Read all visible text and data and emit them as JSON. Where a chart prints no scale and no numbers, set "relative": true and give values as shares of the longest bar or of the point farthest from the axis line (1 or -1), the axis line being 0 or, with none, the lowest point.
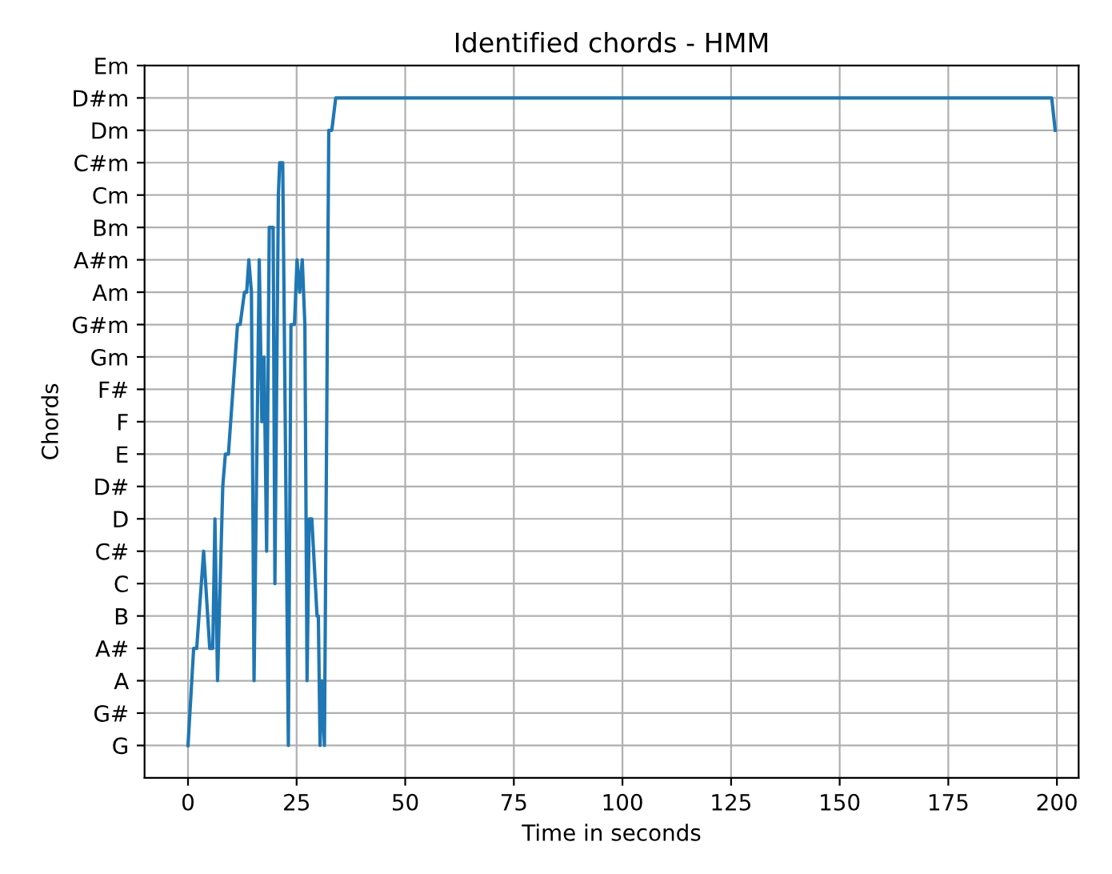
{
  "chart_data": {
    "type": "line",
    "title": "Identified chords - HMM",
    "xlabel": "Time in seconds",
    "ylabel": "Chords",
    "relative": true,
    "y_categories": [
      "Em",
      "D#m",
      "Dm",
      "C#m",
      "Cm",
      "Bm",
      "A#m",
      "Am",
      "G#m",
      "Gm",
      "F#",
      "F",
      "E",
      "D#",
      "D",
      "C#",
      "C",
      "B",
      "A#",
      "A",
      "G#",
      "G"
    ],
    "series": [
      {
        "color": "#1f77b4",
        "x": [
          0,
          1.3,
          2,
          3.6,
          5,
          5.7,
          6.2,
          6.8,
          8,
          8.6,
          9.3,
          11.4,
          12,
          13,
          13.5,
          14,
          14.6,
          15.2,
          16.4,
          17,
          17.5,
          18.1,
          18.7,
          19.6,
          20,
          20.8,
          21.1,
          21.8,
          23.1,
          23.7,
          24.5,
          25.1,
          25.7,
          26.3,
          26.9,
          27.4,
          27.9,
          28.5,
          29.7,
          30,
          30.4,
          30.8,
          31.4,
          32.4,
          33.1,
          34,
          198.8,
          199.6
        ],
        "values": [
          0,
          0.15,
          0.15,
          0.3,
          0.15,
          0.15,
          0.35,
          0.1,
          0.4,
          0.45,
          0.45,
          0.65,
          0.65,
          0.7,
          0.7,
          0.75,
          0.7,
          0.1,
          0.75,
          0.5,
          0.6,
          0.3,
          0.8,
          0.8,
          0.25,
          0.85,
          0.9,
          0.9,
          0,
          0.65,
          0.65,
          0.75,
          0.7,
          0.75,
          0.65,
          0.1,
          0.35,
          0.35,
          0.2,
          0.2,
          0,
          0.1,
          0,
          0.95,
          0.95,
          1,
          1,
          0.95
        ]
      }
    ],
    "xlim": [
      -10,
      205
    ],
    "xticks": [
      0,
      25,
      50,
      75,
      100,
      125,
      150,
      175,
      200
    ],
    "grid": true
  }
}
